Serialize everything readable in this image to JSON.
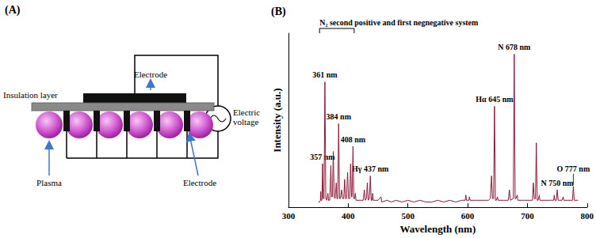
{
  "panel_a": {
    "label": "(A)",
    "electrode_top": "Electrode",
    "insulation": "Insulation layer",
    "voltage": "Electric voltage",
    "plasma": "Plasma",
    "electrode_bottom": "Electrode"
  },
  "chart_data": {
    "type": "line",
    "title": "(B)",
    "x_label": "Wavelength (nm)",
    "y_label": "Intensity (a.u.)",
    "x": [
      350,
      352,
      353.5,
      354,
      354.5,
      356,
      357,
      358,
      359.5,
      361,
      362.5,
      364,
      366,
      367,
      369,
      371,
      372,
      373.5,
      375,
      376.5,
      378,
      380,
      381,
      382.5,
      384,
      385.5,
      387,
      389,
      390.5,
      392.5,
      394,
      395.5,
      397,
      399,
      400.5,
      402.5,
      404,
      405.5,
      406.5,
      408,
      409.5,
      411,
      412,
      413,
      420,
      425,
      427,
      428.5,
      430.5,
      432,
      433.5,
      435.5,
      437,
      438.5,
      440,
      441,
      442,
      450,
      455,
      456,
      465,
      472,
      480,
      490,
      500,
      510,
      520,
      530,
      540,
      550,
      560,
      570,
      580,
      590,
      596,
      597,
      598,
      602,
      603,
      604,
      615,
      625,
      635,
      638,
      640,
      641.5,
      643.5,
      645,
      646.5,
      648,
      650,
      651,
      660,
      668,
      670,
      671.5,
      676.5,
      678,
      679.5,
      681,
      683,
      684,
      695,
      705,
      708.5,
      710,
      711.5,
      713.5,
      715,
      716.5,
      718,
      720,
      721,
      730,
      740,
      744,
      745,
      746,
      748.5,
      750,
      751.5,
      755,
      758,
      760,
      761,
      770,
      775.5,
      777,
      778.5,
      785
    ],
    "values": [
      3,
      3,
      4,
      9,
      4,
      4,
      25,
      5,
      5,
      72,
      5,
      4,
      8,
      4,
      4,
      24,
      6,
      6,
      32,
      6,
      5,
      14,
      5,
      5,
      48,
      5,
      5,
      10,
      5,
      5,
      16,
      5,
      5,
      20,
      5,
      5,
      25,
      6,
      6,
      35,
      5,
      5,
      8,
      4,
      4,
      4,
      10,
      4,
      5,
      14,
      4,
      5,
      18,
      4,
      4,
      8,
      4,
      4,
      6,
      3,
      4,
      3,
      4,
      3,
      4,
      3,
      4,
      3,
      3,
      4,
      3,
      4,
      3,
      4,
      4,
      7,
      4,
      4,
      6,
      4,
      4,
      4,
      4,
      5,
      18,
      5,
      5,
      58,
      4,
      4,
      6,
      4,
      4,
      4,
      10,
      4,
      5,
      88,
      5,
      5,
      7,
      4,
      4,
      4,
      4,
      14,
      5,
      5,
      37,
      4,
      4,
      7,
      4,
      4,
      4,
      4,
      7,
      4,
      4,
      10,
      4,
      4,
      4,
      6,
      4,
      4,
      4,
      12,
      4,
      4
    ],
    "color": "#8b1a3a",
    "xlim": [
      300,
      800
    ],
    "xticks": [
      300,
      400,
      500,
      600,
      700,
      800
    ],
    "ylim": [
      0,
      100
    ],
    "tick_labels": "x",
    "grid": false,
    "annotations": [
      {
        "text": "357 nm",
        "x": 357,
        "y": 25
      },
      {
        "text": "361 nm",
        "x": 361,
        "y": 72
      },
      {
        "text": "384 nm",
        "x": 384,
        "y": 48
      },
      {
        "text": "408 nm",
        "x": 408,
        "y": 35
      },
      {
        "text": "Hγ 437 nm",
        "x": 437,
        "y": 18
      },
      {
        "text": "Hα 645 nm",
        "x": 645,
        "y": 58
      },
      {
        "text": "N 678 nm",
        "x": 678,
        "y": 88
      },
      {
        "text": "N 750 nm",
        "x": 750,
        "y": 10
      },
      {
        "text": "O 777 nm",
        "x": 777,
        "y": 12
      }
    ],
    "bracket": {
      "text": "N₂ second positive and first negnegative system",
      "x": [
        352,
        410
      ]
    }
  }
}
